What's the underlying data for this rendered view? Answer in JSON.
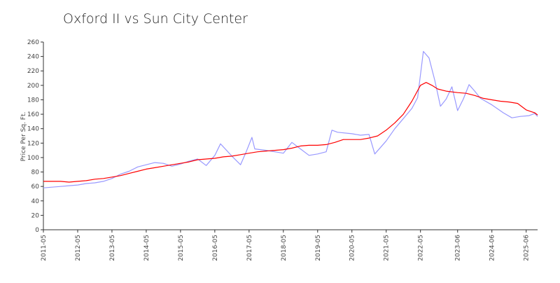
{
  "chart_data": {
    "type": "line",
    "title": "Oxford II vs Sun City Center",
    "xlabel": "",
    "ylabel": "Price Per Sq. Ft.",
    "ylim": [
      0,
      260
    ],
    "yticks": [
      0,
      20,
      40,
      60,
      80,
      100,
      120,
      140,
      160,
      180,
      200,
      220,
      240,
      260
    ],
    "xticks": [
      "2011-05",
      "2012-05",
      "2013-05",
      "2014-05",
      "2015-05",
      "2016-05",
      "2017-05",
      "2018-05",
      "2019-05",
      "2020-05",
      "2021-05",
      "2022-05",
      "2023-06",
      "2024-06",
      "2025-06"
    ],
    "grid": false,
    "legend": "none",
    "series": [
      {
        "color": "#9999ff",
        "points": [
          [
            "2011-05",
            58
          ],
          [
            "2011-08",
            59
          ],
          [
            "2011-11",
            60
          ],
          [
            "2012-02",
            61
          ],
          [
            "2012-05",
            62
          ],
          [
            "2012-08",
            64
          ],
          [
            "2012-11",
            65
          ],
          [
            "2013-02",
            67
          ],
          [
            "2013-05",
            71
          ],
          [
            "2013-08",
            77
          ],
          [
            "2013-11",
            81
          ],
          [
            "2014-02",
            87
          ],
          [
            "2014-05",
            90
          ],
          [
            "2014-08",
            93
          ],
          [
            "2014-11",
            92
          ],
          [
            "2015-02",
            88
          ],
          [
            "2015-05",
            91
          ],
          [
            "2015-08",
            95
          ],
          [
            "2015-11",
            98
          ],
          [
            "2016-02",
            89
          ],
          [
            "2016-05",
            103
          ],
          [
            "2016-07",
            119
          ],
          [
            "2016-11",
            102
          ],
          [
            "2017-02",
            90
          ],
          [
            "2017-04",
            108
          ],
          [
            "2017-06",
            128
          ],
          [
            "2017-07",
            112
          ],
          [
            "2017-11",
            110
          ],
          [
            "2018-02",
            108
          ],
          [
            "2018-05",
            106
          ],
          [
            "2018-08",
            121
          ],
          [
            "2018-11",
            112
          ],
          [
            "2019-02",
            103
          ],
          [
            "2019-05",
            105
          ],
          [
            "2019-08",
            108
          ],
          [
            "2019-10",
            138
          ],
          [
            "2019-12",
            135
          ],
          [
            "2020-05",
            133
          ],
          [
            "2020-08",
            131
          ],
          [
            "2020-11",
            132
          ],
          [
            "2021-01",
            105
          ],
          [
            "2021-05",
            123
          ],
          [
            "2021-08",
            140
          ],
          [
            "2021-11",
            154
          ],
          [
            "2022-02",
            168
          ],
          [
            "2022-04",
            183
          ],
          [
            "2022-06",
            247
          ],
          [
            "2022-08",
            238
          ],
          [
            "2022-10",
            207
          ],
          [
            "2022-12",
            171
          ],
          [
            "2023-02",
            181
          ],
          [
            "2023-04",
            198
          ],
          [
            "2023-06",
            165
          ],
          [
            "2023-08",
            181
          ],
          [
            "2023-10",
            201
          ],
          [
            "2023-12",
            192
          ],
          [
            "2024-02",
            182
          ],
          [
            "2024-06",
            173
          ],
          [
            "2024-10",
            162
          ],
          [
            "2025-01",
            155
          ],
          [
            "2025-04",
            157
          ],
          [
            "2025-07",
            158
          ],
          [
            "2025-09",
            161
          ],
          [
            "2025-10",
            157
          ]
        ]
      },
      {
        "color": "#ff0000",
        "points": [
          [
            "2011-05",
            67
          ],
          [
            "2011-08",
            67
          ],
          [
            "2011-11",
            67
          ],
          [
            "2012-02",
            66
          ],
          [
            "2012-05",
            67
          ],
          [
            "2012-08",
            68
          ],
          [
            "2012-11",
            70
          ],
          [
            "2013-02",
            71
          ],
          [
            "2013-05",
            73
          ],
          [
            "2013-08",
            75
          ],
          [
            "2013-11",
            78
          ],
          [
            "2014-02",
            81
          ],
          [
            "2014-05",
            84
          ],
          [
            "2014-08",
            86
          ],
          [
            "2014-11",
            88
          ],
          [
            "2015-02",
            90
          ],
          [
            "2015-05",
            92
          ],
          [
            "2015-08",
            94
          ],
          [
            "2015-11",
            97
          ],
          [
            "2016-02",
            98
          ],
          [
            "2016-05",
            99
          ],
          [
            "2016-08",
            101
          ],
          [
            "2016-11",
            102
          ],
          [
            "2017-02",
            104
          ],
          [
            "2017-05",
            106
          ],
          [
            "2017-08",
            108
          ],
          [
            "2017-11",
            109
          ],
          [
            "2018-02",
            110
          ],
          [
            "2018-05",
            111
          ],
          [
            "2018-08",
            113
          ],
          [
            "2018-11",
            116
          ],
          [
            "2019-02",
            117
          ],
          [
            "2019-05",
            117
          ],
          [
            "2019-08",
            118
          ],
          [
            "2019-11",
            121
          ],
          [
            "2020-02",
            125
          ],
          [
            "2020-05",
            125
          ],
          [
            "2020-08",
            125
          ],
          [
            "2020-11",
            127
          ],
          [
            "2021-02",
            130
          ],
          [
            "2021-05",
            138
          ],
          [
            "2021-08",
            148
          ],
          [
            "2021-11",
            160
          ],
          [
            "2022-02",
            178
          ],
          [
            "2022-05",
            200
          ],
          [
            "2022-07",
            204
          ],
          [
            "2022-09",
            200
          ],
          [
            "2022-11",
            195
          ],
          [
            "2023-02",
            192
          ],
          [
            "2023-06",
            190
          ],
          [
            "2023-09",
            189
          ],
          [
            "2023-12",
            186
          ],
          [
            "2024-03",
            182
          ],
          [
            "2024-06",
            180
          ],
          [
            "2024-09",
            178
          ],
          [
            "2024-12",
            177
          ],
          [
            "2025-03",
            175
          ],
          [
            "2025-06",
            166
          ],
          [
            "2025-09",
            162
          ],
          [
            "2025-10",
            159
          ]
        ]
      }
    ]
  }
}
